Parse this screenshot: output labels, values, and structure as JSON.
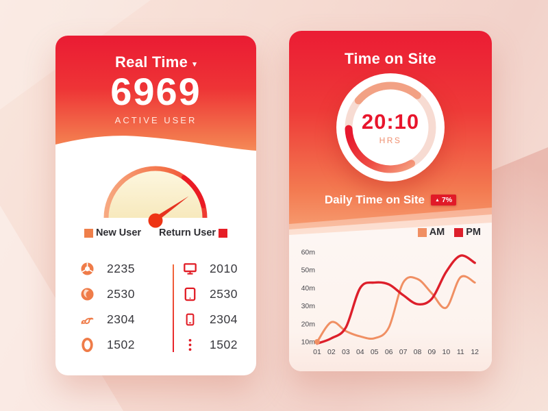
{
  "colors": {
    "accent_red": "#e8152c",
    "accent_orange": "#ef7c49",
    "card_top_red": "#ea1b33",
    "card_bottom_orange": "#f68e5c",
    "device_icon_red": "#e11d26"
  },
  "left_card": {
    "title": "Real Time",
    "active_count": "6969",
    "active_label": "ACTIVE USER",
    "gauge_legend": [
      {
        "label": "New User",
        "color": "#ef7f4a",
        "square": "left"
      },
      {
        "label": "Return User",
        "color": "#e61e26",
        "square": "right"
      }
    ],
    "browser_stats": [
      {
        "icon": "chrome-icon",
        "value": "2235"
      },
      {
        "icon": "firefox-icon",
        "value": "2530"
      },
      {
        "icon": "uc-browser-icon",
        "value": "2304"
      },
      {
        "icon": "opera-icon",
        "value": "1502"
      }
    ],
    "device_stats": [
      {
        "icon": "desktop-icon",
        "value": "2010"
      },
      {
        "icon": "tablet-icon",
        "value": "2530"
      },
      {
        "icon": "mobile-icon",
        "value": "2304"
      },
      {
        "icon": "more-icon",
        "value": "1502"
      }
    ]
  },
  "right_card": {
    "title": "Time on Site",
    "ring": {
      "time": "20:10",
      "unit": "HRS"
    },
    "subtitle": "Daily Time on Site",
    "badge_value": "7%",
    "badge_direction": "up",
    "chart_legend": [
      {
        "label": "AM",
        "color": "#f08f63",
        "square": "left"
      },
      {
        "label": "PM",
        "color": "#dd1f2b",
        "square": "left"
      }
    ]
  },
  "chart_data": {
    "type": "line",
    "title": "Daily Time on Site",
    "x_labels": [
      "01",
      "02",
      "03",
      "04",
      "05",
      "06",
      "07",
      "08",
      "09",
      "10",
      "11",
      "12"
    ],
    "y_ticks": [
      "10m",
      "20m",
      "30m",
      "40m",
      "50m",
      "60m"
    ],
    "ylim": [
      5,
      62
    ],
    "unit": "minutes",
    "grid": false,
    "legend_position": "top-right",
    "series": [
      {
        "name": "AM",
        "color": "#f08f63",
        "values": [
          10,
          21,
          16,
          13,
          12,
          18,
          43,
          45,
          37,
          29,
          46,
          43
        ]
      },
      {
        "name": "PM",
        "color": "#dd1f2b",
        "values": [
          9,
          12,
          18,
          40,
          43,
          42,
          36,
          31,
          34,
          49,
          58,
          54
        ]
      }
    ]
  }
}
